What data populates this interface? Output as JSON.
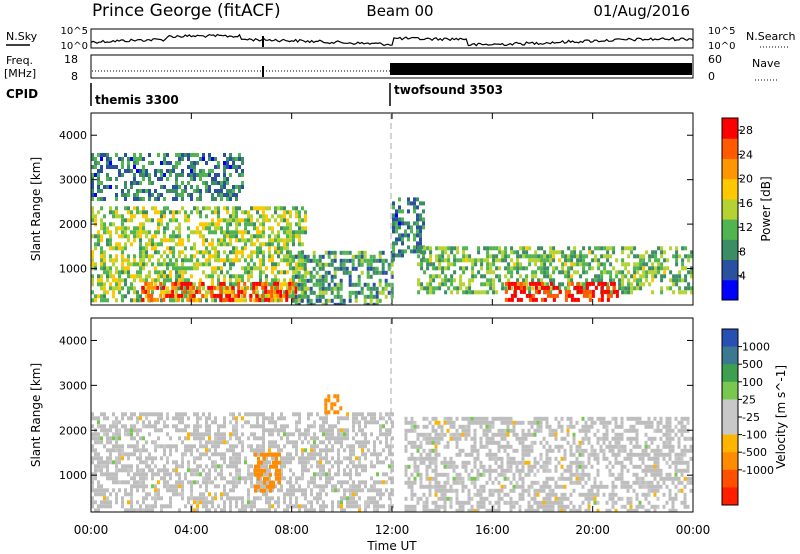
{
  "header": {
    "site": "Prince George (fitACF)",
    "beam": "Beam 00",
    "date": "01/Aug/2016"
  },
  "noise_panel": {
    "left_label": "N.Sky",
    "left_ticks": [
      "10^5",
      "10^0"
    ],
    "right_label": "N.Search",
    "right_ticks": [
      "10^5",
      "10^0"
    ]
  },
  "freq_panel": {
    "left_label_1": "Freq.",
    "left_label_2": "[MHz]",
    "left_ticks": [
      "18",
      "8"
    ],
    "right_label": "Nave",
    "right_ticks": [
      "60",
      "0"
    ]
  },
  "cpid": {
    "label": "CPID",
    "programs": [
      {
        "name": "themis 3300",
        "start_hour": 0
      },
      {
        "name": "twofsound 3503",
        "start_hour": 12
      }
    ]
  },
  "colors": {
    "power_scale": [
      "#0000ff",
      "#2a50a0",
      "#3c8c64",
      "#50b450",
      "#b4d232",
      "#ffc800",
      "#ff9600",
      "#ff5a00",
      "#ff0000"
    ],
    "velocity_scale": [
      "#2850b4",
      "#3c7890",
      "#3ca050",
      "#78c850",
      "#c8c8c8",
      "#c8c8c8",
      "#ffb400",
      "#ff8c00",
      "#ff5000",
      "#ff1e00"
    ],
    "ground_scatter": "#bebebe"
  },
  "chart_data": [
    {
      "type": "heatmap",
      "name": "power",
      "ylabel": "Slant Range [km]",
      "xlim": [
        0,
        24
      ],
      "ylim": [
        180,
        4500
      ],
      "yticks": [
        "1000",
        "2000",
        "3000",
        "4000"
      ],
      "colorbar": {
        "label": "Power [dB]",
        "range": [
          0,
          30
        ],
        "ticks": [
          "4",
          "8",
          "12",
          "16",
          "20",
          "24",
          "28"
        ]
      },
      "regions": [
        {
          "x": [
            0,
            8.5
          ],
          "y": [
            300,
            2400
          ],
          "level_db": 14
        },
        {
          "x": [
            2,
            8.2
          ],
          "y": [
            300,
            700
          ],
          "level_db": 26
        },
        {
          "x": [
            8,
            12
          ],
          "y": [
            200,
            1400
          ],
          "level_db": 10
        },
        {
          "x": [
            12,
            13.2
          ],
          "y": [
            1200,
            2600
          ],
          "level_db": 8
        },
        {
          "x": [
            13,
            24
          ],
          "y": [
            500,
            1500
          ],
          "level_db": 12
        },
        {
          "x": [
            16.5,
            21
          ],
          "y": [
            300,
            700
          ],
          "level_db": 28
        },
        {
          "x": [
            0,
            6
          ],
          "y": [
            2600,
            3600
          ],
          "level_db": 8
        }
      ]
    },
    {
      "type": "heatmap",
      "name": "velocity",
      "ylabel": "Slant Range [km]",
      "xlabel": "Time UT",
      "xticks": [
        "00:00",
        "04:00",
        "08:00",
        "12:00",
        "16:00",
        "20:00",
        "00:00"
      ],
      "xlim": [
        0,
        24
      ],
      "ylim": [
        180,
        4500
      ],
      "yticks": [
        "1000",
        "2000",
        "3000",
        "4000"
      ],
      "colorbar": {
        "label": "Velocity [m s^-1]",
        "ticks": [
          "1000",
          "500",
          "100",
          "25",
          "-25",
          "-100",
          "-500",
          "-1000"
        ]
      },
      "regions": [
        {
          "x": [
            0,
            12
          ],
          "y": [
            200,
            2400
          ],
          "velocity": 0,
          "ground_scatter": true
        },
        {
          "x": [
            6.5,
            7.5
          ],
          "y": [
            650,
            1500
          ],
          "velocity": -300
        },
        {
          "x": [
            9.3,
            9.9
          ],
          "y": [
            2400,
            2800
          ],
          "velocity": -300
        },
        {
          "x": [
            12.5,
            24
          ],
          "y": [
            200,
            2300
          ],
          "velocity": 0,
          "ground_scatter": true
        }
      ]
    }
  ],
  "time_axis": {
    "label": "Time UT"
  }
}
